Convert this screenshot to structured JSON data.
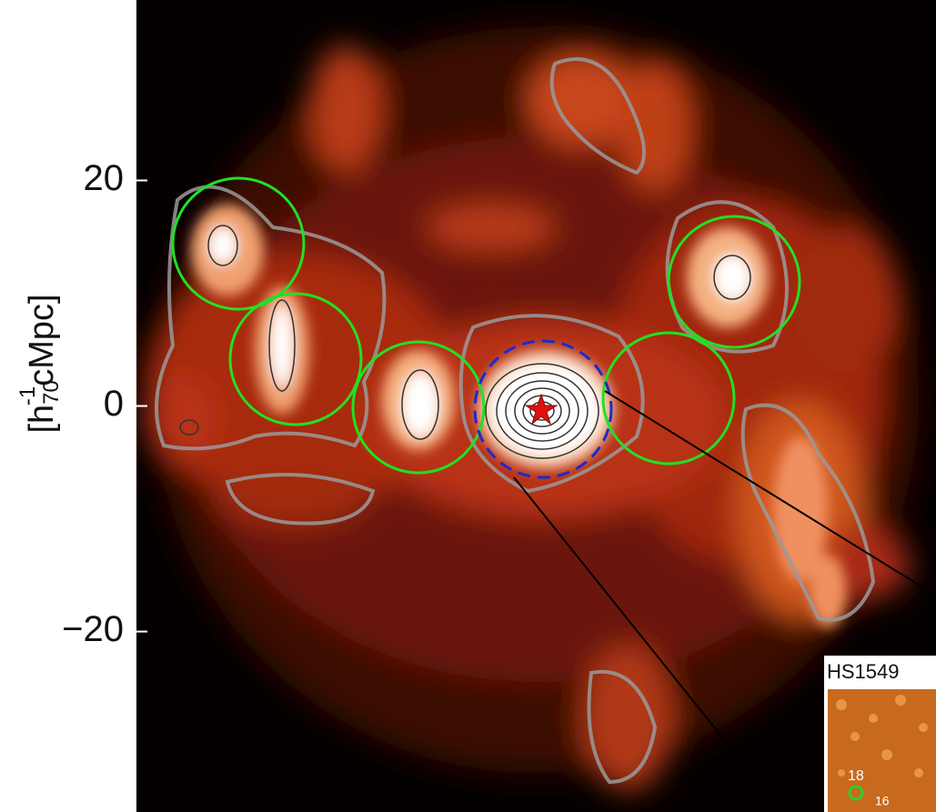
{
  "chart_data": {
    "type": "density-map",
    "ylabel": {
      "prefix": "[h",
      "sub": "70",
      "sup": "-1",
      "suffix": "cMpc]"
    },
    "ylim": [
      -36,
      36
    ],
    "yticks": [
      {
        "value": -20,
        "label": "−20"
      },
      0,
      20
    ],
    "inset": {
      "title": "HS1549",
      "labels": [
        "18",
        "16"
      ]
    }
  }
}
